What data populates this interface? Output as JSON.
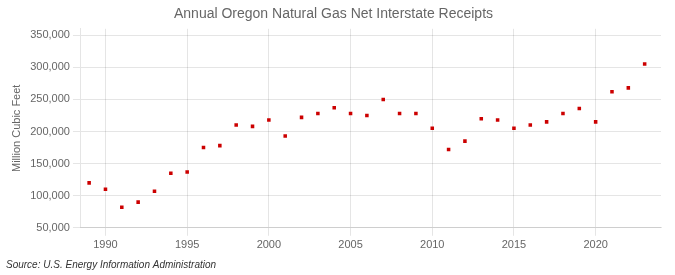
{
  "chart_data": {
    "type": "scatter",
    "title": "Annual Oregon Natural Gas Net Interstate Receipts",
    "ylabel": "Million Cubic Feet",
    "annotation": "Source: U.S. Energy Information Administration",
    "x": [
      1989,
      1990,
      1991,
      1992,
      1993,
      1994,
      1995,
      1996,
      1997,
      1998,
      1999,
      2000,
      2001,
      2002,
      2003,
      2004,
      2005,
      2006,
      2007,
      2008,
      2009,
      2010,
      2011,
      2012,
      2013,
      2014,
      2015,
      2016,
      2017,
      2018,
      2019,
      2020,
      2021,
      2022,
      2023
    ],
    "values": [
      120000,
      110000,
      82000,
      90000,
      107000,
      135000,
      137000,
      175000,
      178000,
      210000,
      208000,
      218000,
      193000,
      222000,
      228000,
      237000,
      228000,
      225000,
      250000,
      228000,
      228000,
      205000,
      172000,
      185000,
      220000,
      218000,
      205000,
      210000,
      215000,
      228000,
      236000,
      215000,
      262000,
      268000,
      305000
    ],
    "color": "#cc0000",
    "marker": "square",
    "xlim": [
      1988.5,
      2024
    ],
    "xticks": [
      1990,
      1995,
      2000,
      2005,
      2010,
      2015,
      2020
    ],
    "ylim": [
      50000,
      360000
    ],
    "yticks": [
      {
        "value": 50000,
        "label": "50,000"
      },
      {
        "value": 100000,
        "label": "100,000"
      },
      {
        "value": 150000,
        "label": "150,000"
      },
      {
        "value": 200000,
        "label": "200,000"
      },
      {
        "value": 250000,
        "label": "250,000"
      },
      {
        "value": 300000,
        "label": "300,000"
      },
      {
        "value": 350000,
        "label": "350,000"
      }
    ],
    "grid": true
  }
}
